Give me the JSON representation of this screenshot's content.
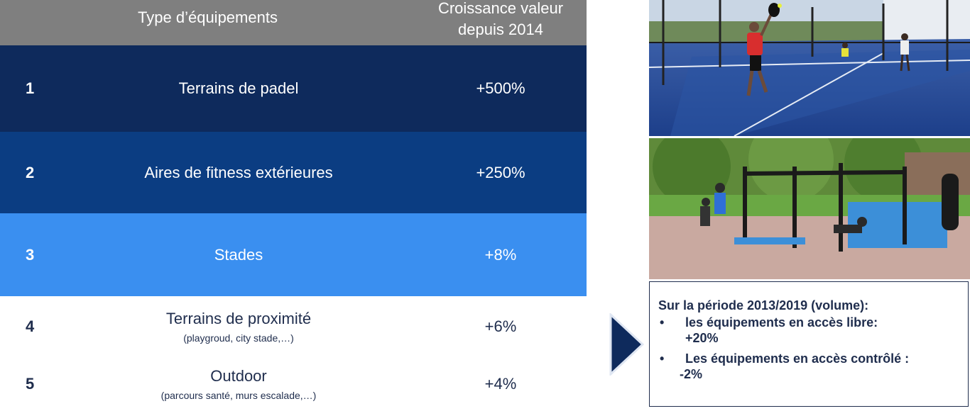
{
  "table": {
    "header": {
      "type_label": "Type d’équipements",
      "growth_label": "Croissance valeur\ndepuis 2014"
    },
    "rows": [
      {
        "rank": "1",
        "type": "Terrains de padel",
        "sub": "",
        "growth": "+500%"
      },
      {
        "rank": "2",
        "type": "Aires de fitness extérieures",
        "sub": "",
        "growth": "+250%"
      },
      {
        "rank": "3",
        "type": "Stades",
        "sub": "",
        "growth": "+8%"
      },
      {
        "rank": "4",
        "type": "Terrains de proximité",
        "sub": "(playgroud, city stade,…)",
        "growth": "+6%"
      },
      {
        "rank": "5",
        "type": "Outdoor",
        "sub": "(parcours santé, murs escalade,…)",
        "growth": "+4%"
      }
    ]
  },
  "colors": {
    "header_bg": "#7f7f7f",
    "row1_bg": "#0e2a5c",
    "row2_bg": "#0b3d82",
    "row3_bg": "#3a8ff0",
    "dark_text": "#1f2d4d",
    "arrow": "#0e2a5c"
  },
  "photos": {
    "top": "padel-court-photo",
    "bottom": "outdoor-fitness-area-photo"
  },
  "info_box": {
    "title": "Sur la période 2013/2019 (volume):",
    "items": [
      {
        "bullet": "•",
        "label": " les équipements en accès libre:",
        "value": "+20%"
      },
      {
        "bullet": "•",
        "label": "Les équipements en accès contrôlé :",
        "value": "-2%"
      }
    ]
  }
}
